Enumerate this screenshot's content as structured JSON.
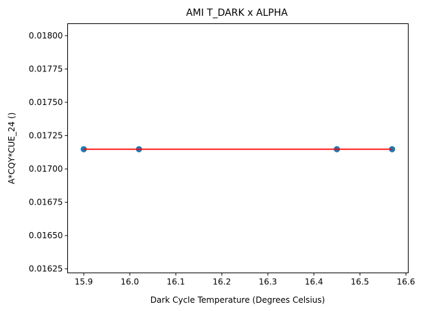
{
  "chart_data": {
    "type": "scatter",
    "title": "AMI T_DARK x ALPHA",
    "xlabel": "Dark Cycle Temperature (Degrees Celsius)",
    "ylabel": "A*CQY*CUE_24 ()",
    "xlim": [
      15.865,
      16.605
    ],
    "ylim": [
      0.01622,
      0.01809
    ],
    "xticks": [
      15.9,
      16.0,
      16.1,
      16.2,
      16.3,
      16.4,
      16.5,
      16.6
    ],
    "xtick_labels": [
      "15.9",
      "16.0",
      "16.1",
      "16.2",
      "16.3",
      "16.4",
      "16.5",
      "16.6"
    ],
    "yticks": [
      0.01625,
      0.0165,
      0.01675,
      0.017,
      0.01725,
      0.0175,
      0.01775,
      0.018
    ],
    "ytick_labels": [
      "0.01625",
      "0.01650",
      "0.01675",
      "0.01700",
      "0.01725",
      "0.01750",
      "0.01775",
      "0.01800"
    ],
    "grid": false,
    "series": [
      {
        "kind": "scatter",
        "color": "#1f77b4",
        "points": [
          {
            "x": 15.9,
            "y": 0.017148
          },
          {
            "x": 16.02,
            "y": 0.017148
          },
          {
            "x": 16.45,
            "y": 0.017148
          },
          {
            "x": 16.57,
            "y": 0.017148
          }
        ]
      },
      {
        "kind": "line",
        "color": "#ff0000",
        "points": [
          {
            "x": 15.9,
            "y": 0.017148
          },
          {
            "x": 16.57,
            "y": 0.017148
          }
        ]
      }
    ]
  }
}
